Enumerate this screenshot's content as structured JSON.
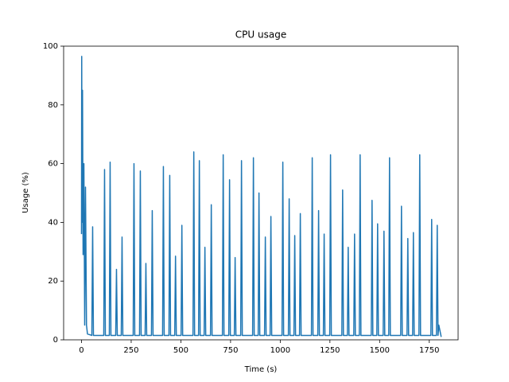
{
  "chart_data": {
    "type": "line",
    "title": "CPU usage",
    "xlabel": "Time (s)",
    "ylabel": "Usage (%)",
    "x": [
      0,
      1,
      3,
      5,
      8,
      12,
      16,
      20,
      25,
      30,
      52,
      56,
      60,
      112,
      116,
      120,
      140,
      144,
      148,
      172,
      176,
      180,
      200,
      204,
      208,
      260,
      264,
      268,
      292,
      296,
      300,
      320,
      324,
      328,
      352,
      356,
      360,
      408,
      412,
      416,
      440,
      444,
      448,
      469,
      473,
      477,
      501,
      505,
      509,
      561,
      565,
      569,
      589,
      593,
      597,
      617,
      621,
      625,
      649,
      653,
      657,
      709,
      713,
      717,
      741,
      745,
      749,
      769,
      773,
      777,
      801,
      805,
      809,
      861,
      865,
      869,
      889,
      893,
      897,
      921,
      925,
      929,
      949,
      953,
      957,
      1009,
      1013,
      1017,
      1041,
      1045,
      1049,
      1069,
      1073,
      1077,
      1097,
      1101,
      1105,
      1157,
      1161,
      1165,
      1189,
      1193,
      1197,
      1217,
      1221,
      1225,
      1249,
      1253,
      1257,
      1310,
      1314,
      1318,
      1338,
      1342,
      1346,
      1370,
      1374,
      1378,
      1398,
      1402,
      1406,
      1458,
      1462,
      1466,
      1486,
      1490,
      1494,
      1518,
      1522,
      1526,
      1546,
      1550,
      1554,
      1606,
      1610,
      1614,
      1638,
      1642,
      1646,
      1666,
      1670,
      1674,
      1698,
      1702,
      1706,
      1758,
      1762,
      1766,
      1786,
      1790,
      1794,
      1798,
      1810
    ],
    "values": [
      36,
      96.5,
      40,
      85,
      29,
      60,
      5,
      52,
      5,
      2,
      1.5,
      38.5,
      1.5,
      1.5,
      58,
      1.5,
      1.5,
      60.5,
      1.5,
      1.5,
      24,
      1.5,
      1.5,
      35,
      1.5,
      1.5,
      60,
      1.5,
      1.5,
      57.5,
      1.5,
      1.5,
      26,
      1.5,
      1.5,
      44,
      1.5,
      1.5,
      59,
      1.5,
      1.5,
      56,
      1.5,
      1.5,
      28.5,
      1.5,
      1.5,
      39,
      1.5,
      1.5,
      64,
      1.5,
      1.5,
      61,
      1.5,
      1.5,
      31.5,
      1.5,
      1.5,
      46,
      1.5,
      1.5,
      63,
      1.5,
      1.5,
      54.5,
      1.5,
      1.5,
      28,
      1.5,
      1.5,
      61,
      1.5,
      1.5,
      62,
      1.5,
      1.5,
      50,
      1.5,
      1.5,
      35,
      1.5,
      1.5,
      42,
      1.5,
      1.5,
      60.5,
      1.5,
      1.5,
      48,
      1.5,
      1.5,
      35.5,
      1.5,
      1.5,
      43,
      1.5,
      1.5,
      62,
      1.5,
      1.5,
      44,
      1.5,
      1.5,
      36,
      1.5,
      1.5,
      63,
      1.5,
      1.5,
      51,
      1.5,
      1.5,
      31.5,
      1.5,
      1.5,
      36,
      1.5,
      1.5,
      63,
      1.5,
      1.5,
      47.5,
      1.5,
      1.5,
      39.5,
      1.5,
      1.5,
      37,
      1.5,
      1.5,
      62,
      1.5,
      1.5,
      45.5,
      1.5,
      1.5,
      34.5,
      1.5,
      1.5,
      36.5,
      1.5,
      1.5,
      63,
      1.5,
      1.5,
      41,
      1.5,
      1.5,
      39,
      1.5,
      5,
      1
    ],
    "color": "#1f77b4",
    "xlim": [
      -90,
      1895
    ],
    "xticks": [
      0,
      250,
      500,
      750,
      1000,
      1250,
      1500,
      1750
    ],
    "ylim": [
      0,
      100
    ],
    "yticks": [
      0,
      20,
      40,
      60,
      80,
      100
    ]
  }
}
